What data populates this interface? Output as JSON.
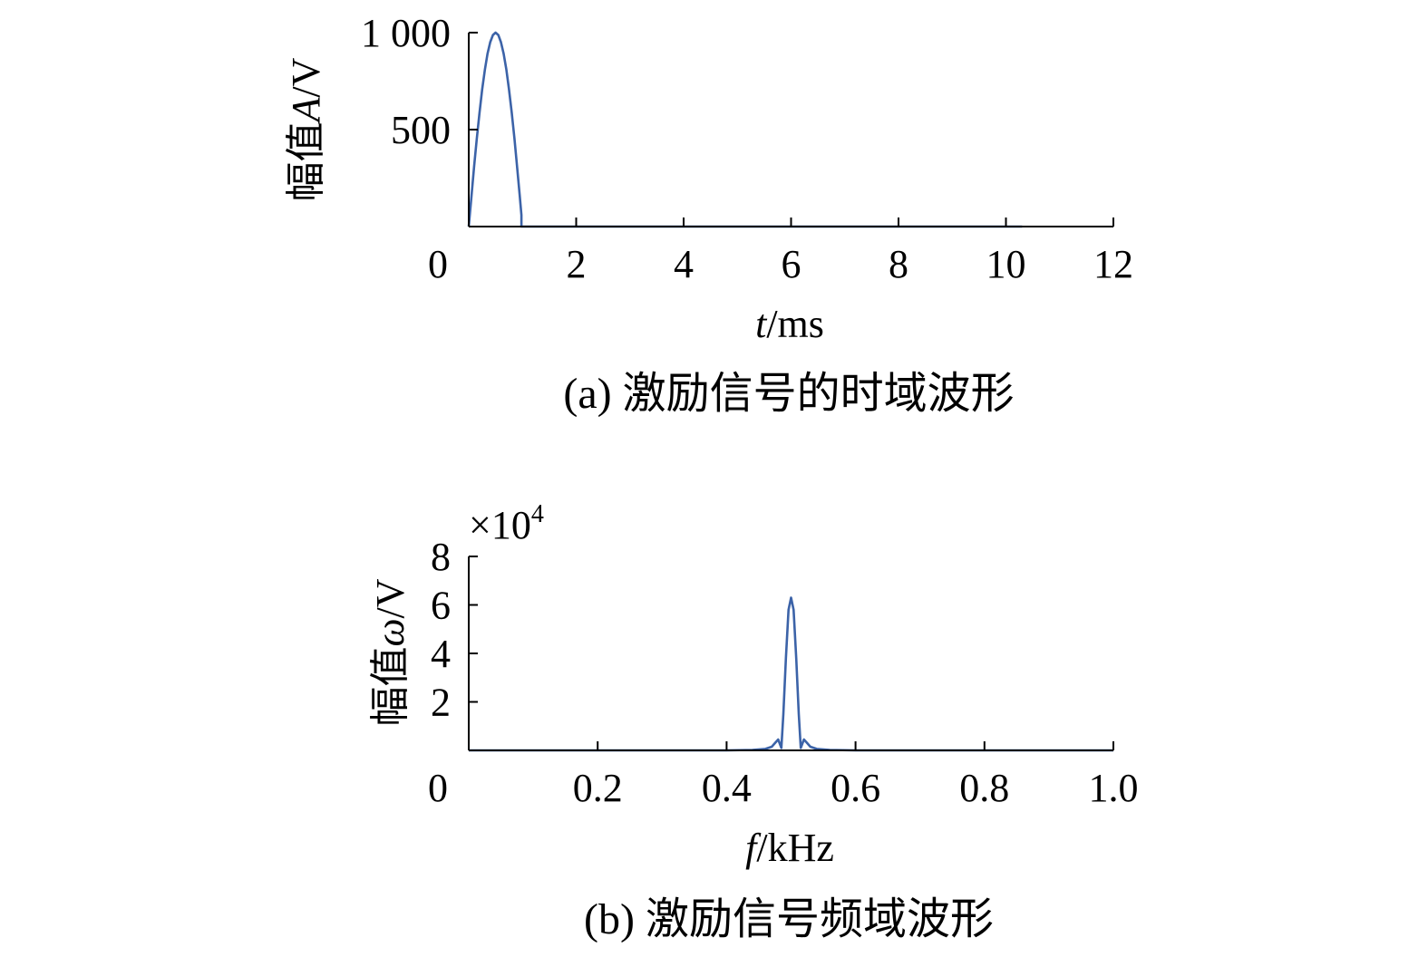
{
  "chart_data": [
    {
      "type": "line",
      "caption": "(a) 激励信号的时域波形",
      "xlabel_var": "t",
      "xlabel_unit": "/ms",
      "ylabel_prefix": "幅值",
      "ylabel_var": "A",
      "ylabel_unit": "/V",
      "xlim": [
        0,
        12
      ],
      "ylim": [
        0,
        1000
      ],
      "xticks": [
        "0",
        "2",
        "4",
        "6",
        "8",
        "10",
        "12"
      ],
      "xtick_values": [
        0,
        2,
        4,
        6,
        8,
        10,
        12
      ],
      "yticks": [
        "500",
        "1 000"
      ],
      "ytick_values": [
        500,
        1000
      ],
      "color": "#3c63a8",
      "series": [
        {
          "x": [
            0,
            0.05,
            0.1,
            0.15,
            0.2,
            0.25,
            0.3,
            0.35,
            0.4,
            0.45,
            0.5,
            0.55,
            0.6,
            0.65,
            0.7,
            0.75,
            0.8,
            0.85,
            0.9,
            0.95,
            0.98,
            0.98,
            10.3
          ],
          "y": [
            0,
            156,
            309,
            454,
            588,
            707,
            809,
            891,
            951,
            988,
            1000,
            988,
            951,
            891,
            809,
            707,
            588,
            454,
            309,
            156,
            60,
            0,
            0
          ]
        }
      ]
    },
    {
      "type": "line",
      "caption": "(b) 激励信号频域波形",
      "xlabel_var": "f",
      "xlabel_unit": "/kHz",
      "ylabel_prefix": "幅值",
      "ylabel_var": "ω",
      "ylabel_unit": "/V",
      "multiplier_base": "×10",
      "multiplier_exp": "4",
      "xlim": [
        0,
        1.0
      ],
      "ylim": [
        0,
        8
      ],
      "xticks": [
        "0",
        "0.2",
        "0.4",
        "0.6",
        "0.8",
        "1.0"
      ],
      "xtick_values": [
        0,
        0.2,
        0.4,
        0.6,
        0.8,
        1.0
      ],
      "yticks": [
        "2",
        "4",
        "6",
        "8"
      ],
      "ytick_values": [
        2,
        4,
        6,
        8
      ],
      "color": "#3c63a8",
      "series": [
        {
          "x": [
            0,
            0.4,
            0.44,
            0.46,
            0.47,
            0.475,
            0.48,
            0.485,
            0.488,
            0.492,
            0.496,
            0.5,
            0.504,
            0.508,
            0.512,
            0.515,
            0.52,
            0.525,
            0.53,
            0.54,
            0.56,
            0.6,
            1.0
          ],
          "y": [
            0,
            0,
            0.02,
            0.06,
            0.15,
            0.3,
            0.45,
            0.1,
            1.5,
            3.8,
            5.8,
            6.3,
            5.8,
            3.8,
            1.5,
            0.1,
            0.45,
            0.3,
            0.15,
            0.06,
            0.02,
            0,
            0
          ]
        }
      ]
    }
  ]
}
